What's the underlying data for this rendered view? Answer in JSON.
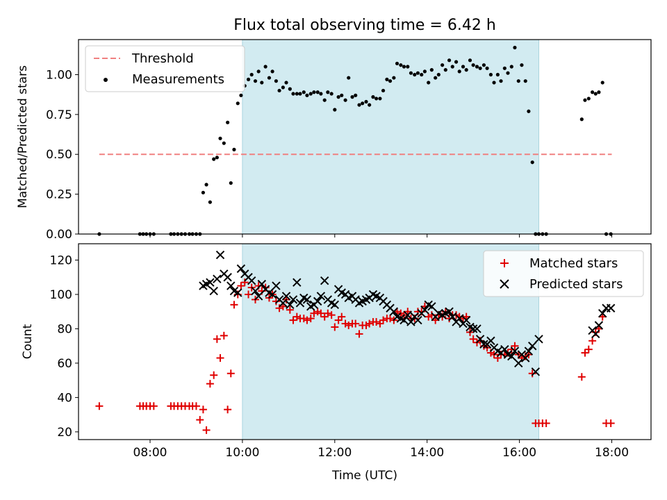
{
  "title": "Flux total observing time = 6.42 h",
  "colors": {
    "threshold": "#f08080",
    "measurement": "#000000",
    "matched": "#e00000",
    "predicted": "#000000",
    "observing_band": "#d2ebf1"
  },
  "chart_data": [
    {
      "type": "scatter",
      "ylabel": "Matched/Predicted stars",
      "xlim": [
        6.45,
        18.85
      ],
      "ylim": [
        0.0,
        1.22
      ],
      "ytick_labels": [
        "0.00",
        "0.25",
        "0.50",
        "0.75",
        "1.00"
      ],
      "ytick_values": [
        0,
        0.25,
        0.5,
        0.75,
        1.0
      ],
      "xtick_labels": [
        "08:00",
        "10:00",
        "12:00",
        "14:00",
        "16:00",
        "18:00"
      ],
      "xtick_values": [
        8,
        10,
        12,
        14,
        16,
        18
      ],
      "observing_band": [
        10.0,
        16.42
      ],
      "legend_position": "top-left",
      "threshold": {
        "name": "Threshold",
        "x": [
          6.9,
          18.0
        ],
        "y": 0.5,
        "style": "dashed"
      },
      "series": [
        {
          "name": "Measurements",
          "marker": "dot",
          "x": [
            6.9,
            7.78,
            7.85,
            7.92,
            8.0,
            8.08,
            8.45,
            8.52,
            8.6,
            8.68,
            8.76,
            8.85,
            8.92,
            9.0,
            9.08,
            9.15,
            9.22,
            9.3,
            9.38,
            9.45,
            9.52,
            9.6,
            9.68,
            9.75,
            9.82,
            9.9,
            9.97,
            10.05,
            10.13,
            10.2,
            10.28,
            10.35,
            10.42,
            10.5,
            10.58,
            10.65,
            10.73,
            10.8,
            10.88,
            10.95,
            11.03,
            11.1,
            11.18,
            11.25,
            11.33,
            11.4,
            11.48,
            11.55,
            11.63,
            11.7,
            11.78,
            11.85,
            11.93,
            12.0,
            12.08,
            12.15,
            12.23,
            12.3,
            12.38,
            12.45,
            12.53,
            12.6,
            12.68,
            12.75,
            12.83,
            12.9,
            12.98,
            13.05,
            13.13,
            13.2,
            13.28,
            13.35,
            13.43,
            13.5,
            13.58,
            13.65,
            13.73,
            13.8,
            13.88,
            13.95,
            14.03,
            14.1,
            14.18,
            14.25,
            14.33,
            14.4,
            14.48,
            14.55,
            14.63,
            14.7,
            14.78,
            14.85,
            14.93,
            15.0,
            15.08,
            15.15,
            15.23,
            15.3,
            15.38,
            15.45,
            15.53,
            15.6,
            15.68,
            15.75,
            15.83,
            15.9,
            15.98,
            16.05,
            16.13,
            16.2,
            16.28,
            16.35,
            16.42,
            16.5,
            16.58,
            17.35,
            17.42,
            17.5,
            17.58,
            17.65,
            17.72,
            17.8,
            17.88,
            17.98
          ],
          "y": [
            0.0,
            0.0,
            0.0,
            0.0,
            0.0,
            0.0,
            0.0,
            0.0,
            0.0,
            0.0,
            0.0,
            0.0,
            0.0,
            0.0,
            0.0,
            0.26,
            0.31,
            0.2,
            0.47,
            0.48,
            0.6,
            0.57,
            0.7,
            0.32,
            0.53,
            0.82,
            0.87,
            0.93,
            0.97,
            1.0,
            0.96,
            1.02,
            0.95,
            1.05,
            0.98,
            1.02,
            0.96,
            0.9,
            0.92,
            0.95,
            0.91,
            0.88,
            0.88,
            0.88,
            0.89,
            0.87,
            0.88,
            0.89,
            0.89,
            0.88,
            0.84,
            0.89,
            0.88,
            0.78,
            0.86,
            0.87,
            0.84,
            0.98,
            0.86,
            0.87,
            0.81,
            0.82,
            0.83,
            0.81,
            0.86,
            0.85,
            0.85,
            0.9,
            0.97,
            0.96,
            0.98,
            1.07,
            1.06,
            1.05,
            1.05,
            1.01,
            1.0,
            1.01,
            1.0,
            1.02,
            0.95,
            1.03,
            0.98,
            1.0,
            1.06,
            1.03,
            1.09,
            1.05,
            1.08,
            1.02,
            1.05,
            1.03,
            1.09,
            1.06,
            1.05,
            1.04,
            1.06,
            1.04,
            1.0,
            0.95,
            1.0,
            0.96,
            1.04,
            1.01,
            1.05,
            1.17,
            0.96,
            1.06,
            0.96,
            0.77,
            0.45,
            0.0,
            0.0,
            0.0,
            0.0,
            0.72,
            0.84,
            0.85,
            0.89,
            0.88,
            0.89,
            0.95,
            0.0,
            0.0
          ]
        }
      ]
    },
    {
      "type": "scatter",
      "title": "",
      "xlabel": "Time (UTC)",
      "ylabel": "Count",
      "xlim": [
        6.45,
        18.85
      ],
      "ylim": [
        15.5,
        129.5
      ],
      "ytick_labels": [
        "20",
        "40",
        "60",
        "80",
        "100",
        "120"
      ],
      "ytick_values": [
        20,
        40,
        60,
        80,
        100,
        120
      ],
      "xtick_labels": [
        "08:00",
        "10:00",
        "12:00",
        "14:00",
        "16:00",
        "18:00"
      ],
      "xtick_values": [
        8,
        10,
        12,
        14,
        16,
        18
      ],
      "observing_band": [
        10.0,
        16.42
      ],
      "legend_position": "top-right",
      "series": [
        {
          "name": "Matched stars",
          "marker": "plus",
          "x": [
            6.9,
            7.78,
            7.85,
            7.92,
            8.0,
            8.08,
            8.45,
            8.52,
            8.6,
            8.68,
            8.76,
            8.85,
            8.92,
            9.0,
            9.08,
            9.15,
            9.22,
            9.3,
            9.38,
            9.45,
            9.52,
            9.6,
            9.68,
            9.75,
            9.82,
            9.9,
            9.97,
            10.05,
            10.13,
            10.2,
            10.28,
            10.35,
            10.42,
            10.5,
            10.58,
            10.65,
            10.73,
            10.8,
            10.88,
            10.95,
            11.03,
            11.1,
            11.18,
            11.25,
            11.33,
            11.4,
            11.48,
            11.55,
            11.63,
            11.7,
            11.78,
            11.85,
            11.93,
            12.0,
            12.08,
            12.15,
            12.23,
            12.3,
            12.38,
            12.45,
            12.53,
            12.6,
            12.68,
            12.75,
            12.83,
            12.9,
            12.98,
            13.05,
            13.13,
            13.2,
            13.28,
            13.35,
            13.43,
            13.5,
            13.58,
            13.65,
            13.73,
            13.8,
            13.88,
            13.95,
            14.03,
            14.1,
            14.18,
            14.25,
            14.33,
            14.4,
            14.48,
            14.55,
            14.63,
            14.7,
            14.78,
            14.85,
            14.93,
            15.0,
            15.08,
            15.15,
            15.23,
            15.3,
            15.38,
            15.45,
            15.53,
            15.6,
            15.68,
            15.75,
            15.83,
            15.9,
            15.98,
            16.05,
            16.13,
            16.2,
            16.28,
            16.35,
            16.42,
            16.5,
            16.58,
            17.35,
            17.42,
            17.5,
            17.58,
            17.65,
            17.72,
            17.8,
            17.88,
            17.98
          ],
          "y": [
            35,
            35,
            35,
            35,
            35,
            35,
            35,
            35,
            35,
            35,
            35,
            35,
            35,
            35,
            27,
            33,
            21,
            48,
            53,
            74,
            63,
            76,
            33,
            54,
            94,
            100,
            105,
            107,
            100,
            104,
            97,
            105,
            102,
            104,
            98,
            100,
            96,
            92,
            93,
            97,
            91,
            85,
            87,
            86,
            86,
            85,
            86,
            89,
            90,
            89,
            87,
            89,
            88,
            81,
            85,
            87,
            83,
            82,
            83,
            83,
            77,
            82,
            82,
            83,
            84,
            84,
            83,
            85,
            86,
            86,
            85,
            90,
            89,
            88,
            90,
            86,
            86,
            90,
            90,
            93,
            87,
            88,
            85,
            88,
            87,
            90,
            86,
            88,
            88,
            87,
            86,
            87,
            78,
            74,
            72,
            73,
            70,
            69,
            66,
            65,
            63,
            65,
            65,
            66,
            68,
            70,
            65,
            63,
            64,
            65,
            54,
            25,
            25,
            25,
            25,
            52,
            66,
            68,
            73,
            78,
            80,
            87,
            25,
            25
          ]
        },
        {
          "name": "Predicted stars",
          "marker": "x",
          "x": [
            9.15,
            9.22,
            9.3,
            9.38,
            9.45,
            9.52,
            9.6,
            9.68,
            9.75,
            9.82,
            9.9,
            9.97,
            10.05,
            10.13,
            10.2,
            10.28,
            10.35,
            10.42,
            10.5,
            10.58,
            10.65,
            10.73,
            10.8,
            10.88,
            10.95,
            11.03,
            11.1,
            11.18,
            11.25,
            11.33,
            11.4,
            11.48,
            11.55,
            11.63,
            11.7,
            11.78,
            11.85,
            11.93,
            12.0,
            12.08,
            12.15,
            12.23,
            12.3,
            12.38,
            12.45,
            12.53,
            12.6,
            12.68,
            12.75,
            12.83,
            12.9,
            12.98,
            13.05,
            13.13,
            13.2,
            13.28,
            13.35,
            13.43,
            13.5,
            13.58,
            13.65,
            13.73,
            13.8,
            13.88,
            13.95,
            14.03,
            14.1,
            14.18,
            14.25,
            14.33,
            14.4,
            14.48,
            14.55,
            14.63,
            14.7,
            14.78,
            14.85,
            14.93,
            15.0,
            15.08,
            15.15,
            15.23,
            15.3,
            15.38,
            15.45,
            15.53,
            15.6,
            15.68,
            15.75,
            15.83,
            15.9,
            15.98,
            16.05,
            16.13,
            16.2,
            16.28,
            16.35,
            16.42,
            17.58,
            17.65,
            17.72,
            17.8,
            17.88,
            17.98
          ],
          "y": [
            105,
            106,
            107,
            102,
            109,
            123,
            112,
            110,
            105,
            102,
            101,
            115,
            112,
            110,
            108,
            102,
            99,
            106,
            103,
            101,
            100,
            105,
            97,
            95,
            99,
            94,
            97,
            107,
            95,
            98,
            97,
            93,
            94,
            96,
            99,
            108,
            97,
            95,
            94,
            103,
            101,
            100,
            98,
            99,
            97,
            95,
            96,
            97,
            98,
            100,
            99,
            98,
            96,
            94,
            92,
            90,
            87,
            86,
            85,
            88,
            84,
            87,
            85,
            89,
            91,
            94,
            93,
            87,
            89,
            88,
            89,
            90,
            87,
            84,
            86,
            83,
            85,
            81,
            80,
            80,
            74,
            71,
            71,
            73,
            69,
            67,
            66,
            68,
            65,
            64,
            67,
            60,
            65,
            63,
            67,
            70,
            55,
            74,
            79,
            77,
            82,
            89,
            92,
            92
          ]
        }
      ]
    }
  ]
}
